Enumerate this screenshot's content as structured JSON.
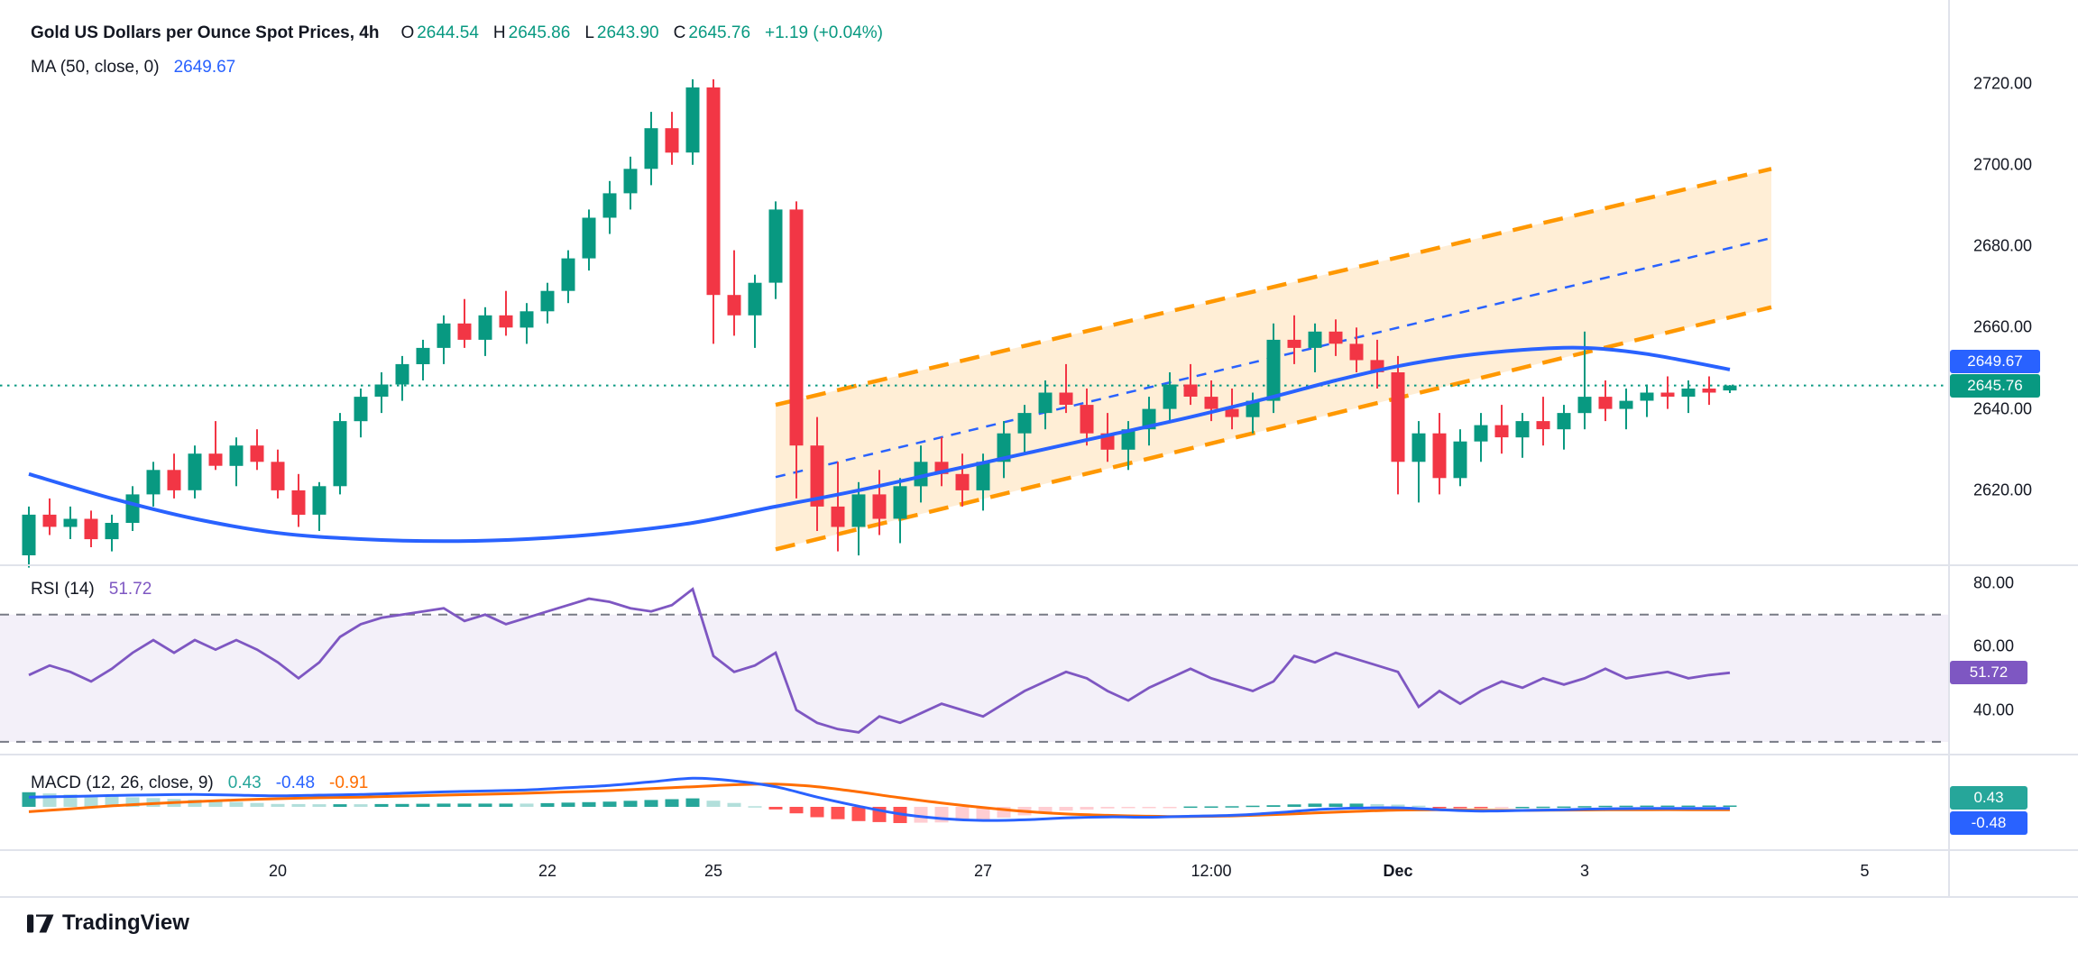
{
  "app": {
    "name": "TradingView chart"
  },
  "header": {
    "title": "Gold US Dollars per Ounce Spot Prices, 4h",
    "ohlc": {
      "o_label": "O",
      "o": "2644.54",
      "h_label": "H",
      "h": "2645.86",
      "l_label": "L",
      "l": "2643.90",
      "c_label": "C",
      "c": "2645.76",
      "change": "+1.19 (+0.04%)"
    },
    "ma": {
      "label": "MA (50, close, 0)",
      "value": "2649.67"
    }
  },
  "rsi": {
    "label": "RSI (14)",
    "value": "51.72"
  },
  "macd": {
    "label": "MACD (12, 26, close, 9)",
    "hist": "0.43",
    "macd": "-0.48",
    "signal": "-0.91"
  },
  "badges": {
    "ma_value": "2649.67",
    "last_price": "2645.76",
    "rsi": "51.72",
    "macd_hist": "0.43",
    "macd_line": "-0.48"
  },
  "logo": {
    "text": "TradingView"
  },
  "colors": {
    "up": "#089981",
    "down": "#F23645",
    "ma_line": "#2962FF",
    "channel_line": "#FF9800",
    "channel_fill": "rgba(255,152,0,0.16)",
    "channel_mid": "#2962FF",
    "rsi_line": "#7E57C2",
    "rsi_band_fill": "rgba(126,87,194,0.09)",
    "level_dash": "#787B86",
    "macd_line": "#2962FF",
    "signal_line": "#FF6D00",
    "hist_up": "#26A69A",
    "hist_up_weak": "#B2DFDB",
    "hist_down": "#FF5252",
    "hist_down_weak": "#FFCDD2",
    "text": "#131722",
    "separator": "#E0E3EB"
  },
  "chart_data": [
    {
      "type": "candlestick",
      "title": "Gold US Dollars per Ounce Spot Prices, 4h",
      "interval": "4h",
      "last_ohlc": {
        "open": 2644.54,
        "high": 2645.86,
        "low": 2643.9,
        "close": 2645.76,
        "change": "+1.19 (+0.04%)"
      },
      "ylim": [
        2601.8,
        2740.5
      ],
      "y_ticks": [
        {
          "v": 2720,
          "label": "2720.00"
        },
        {
          "v": 2700,
          "label": "2700.00"
        },
        {
          "v": 2680,
          "label": "2680.00"
        },
        {
          "v": 2660,
          "label": "2660.00"
        },
        {
          "v": 2640,
          "label": "2640.00"
        },
        {
          "v": 2620,
          "label": "2620.00"
        }
      ],
      "x_labels": [
        {
          "label": "20",
          "i": 12
        },
        {
          "label": "22",
          "i": 25
        },
        {
          "label": "25",
          "i": 33
        },
        {
          "label": "27",
          "i": 46
        },
        {
          "label": "12:00",
          "i": 57
        },
        {
          "label": "Dec",
          "i": 66,
          "bold": true
        },
        {
          "label": "3",
          "i": 75
        },
        {
          "label": "5",
          "i": 88.5
        }
      ],
      "current_price": 2645.76,
      "ma50": {
        "name": "MA (50, close, 0)",
        "last": 2649.67,
        "points": [
          [
            0,
            2624
          ],
          [
            4,
            2618
          ],
          [
            8,
            2613
          ],
          [
            12,
            2609.5
          ],
          [
            16,
            2608
          ],
          [
            20,
            2607.5
          ],
          [
            24,
            2608
          ],
          [
            28,
            2609.5
          ],
          [
            32,
            2612
          ],
          [
            36,
            2616
          ],
          [
            40,
            2620
          ],
          [
            44,
            2624.5
          ],
          [
            48,
            2629
          ],
          [
            52,
            2633.5
          ],
          [
            56,
            2638
          ],
          [
            60,
            2643
          ],
          [
            63,
            2647
          ],
          [
            66,
            2650.5
          ],
          [
            69,
            2653
          ],
          [
            72,
            2654.5
          ],
          [
            75,
            2655
          ],
          [
            78,
            2653.5
          ],
          [
            82,
            2649.67
          ]
        ]
      },
      "channel": {
        "i0": 36,
        "i1": 84,
        "upper": [
          2641,
          2699
        ],
        "lower": [
          2605.5,
          2665
        ]
      },
      "candles": [
        [
          2604,
          2616,
          2601,
          2614
        ],
        [
          2614,
          2618,
          2609,
          2611
        ],
        [
          2611,
          2616,
          2608,
          2613
        ],
        [
          2613,
          2615,
          2606,
          2608
        ],
        [
          2608,
          2614,
          2605,
          2612
        ],
        [
          2612,
          2621,
          2610,
          2619
        ],
        [
          2619,
          2627,
          2616,
          2625
        ],
        [
          2625,
          2629,
          2618,
          2620
        ],
        [
          2620,
          2631,
          2618,
          2629
        ],
        [
          2629,
          2637,
          2625,
          2626
        ],
        [
          2626,
          2633,
          2621,
          2631
        ],
        [
          2631,
          2635,
          2625,
          2627
        ],
        [
          2627,
          2630,
          2618,
          2620
        ],
        [
          2620,
          2624,
          2611,
          2614
        ],
        [
          2614,
          2622,
          2610,
          2621
        ],
        [
          2621,
          2639,
          2619,
          2637
        ],
        [
          2637,
          2645,
          2633,
          2643
        ],
        [
          2643,
          2649,
          2639,
          2646
        ],
        [
          2646,
          2653,
          2642,
          2651
        ],
        [
          2651,
          2657,
          2647,
          2655
        ],
        [
          2655,
          2663,
          2651,
          2661
        ],
        [
          2661,
          2667,
          2655,
          2657
        ],
        [
          2657,
          2665,
          2653,
          2663
        ],
        [
          2663,
          2669,
          2658,
          2660
        ],
        [
          2660,
          2666,
          2656,
          2664
        ],
        [
          2664,
          2671,
          2661,
          2669
        ],
        [
          2669,
          2679,
          2666,
          2677
        ],
        [
          2677,
          2689,
          2674,
          2687
        ],
        [
          2687,
          2696,
          2683,
          2693
        ],
        [
          2693,
          2702,
          2689,
          2699
        ],
        [
          2699,
          2713,
          2695,
          2709
        ],
        [
          2709,
          2713,
          2700,
          2703
        ],
        [
          2703,
          2721,
          2700,
          2719
        ],
        [
          2719,
          2721,
          2656,
          2668
        ],
        [
          2668,
          2679,
          2658,
          2663
        ],
        [
          2663,
          2673,
          2655,
          2671
        ],
        [
          2671,
          2691,
          2667,
          2689
        ],
        [
          2689,
          2691,
          2618,
          2631
        ],
        [
          2631,
          2638,
          2610,
          2616
        ],
        [
          2616,
          2627,
          2605,
          2611
        ],
        [
          2611,
          2622,
          2604,
          2619
        ],
        [
          2619,
          2625,
          2609,
          2613
        ],
        [
          2613,
          2623,
          2607,
          2621
        ],
        [
          2621,
          2631,
          2617,
          2627
        ],
        [
          2627,
          2633,
          2621,
          2624
        ],
        [
          2624,
          2629,
          2616,
          2620
        ],
        [
          2620,
          2629,
          2615,
          2627
        ],
        [
          2627,
          2637,
          2623,
          2634
        ],
        [
          2634,
          2641,
          2629,
          2639
        ],
        [
          2639,
          2647,
          2635,
          2644
        ],
        [
          2644,
          2651,
          2639,
          2641
        ],
        [
          2641,
          2645,
          2631,
          2634
        ],
        [
          2634,
          2639,
          2627,
          2630
        ],
        [
          2630,
          2637,
          2625,
          2635
        ],
        [
          2635,
          2643,
          2631,
          2640
        ],
        [
          2640,
          2649,
          2637,
          2646
        ],
        [
          2646,
          2651,
          2641,
          2643
        ],
        [
          2643,
          2647,
          2637,
          2640
        ],
        [
          2640,
          2645,
          2635,
          2638
        ],
        [
          2638,
          2644,
          2634,
          2642
        ],
        [
          2642,
          2661,
          2639,
          2657
        ],
        [
          2657,
          2663,
          2651,
          2655
        ],
        [
          2655,
          2661,
          2649,
          2659
        ],
        [
          2659,
          2662,
          2653,
          2656
        ],
        [
          2656,
          2660,
          2649,
          2652
        ],
        [
          2652,
          2657,
          2645,
          2649
        ],
        [
          2649,
          2653,
          2619,
          2627
        ],
        [
          2627,
          2637,
          2617,
          2634
        ],
        [
          2634,
          2639,
          2619,
          2623
        ],
        [
          2623,
          2635,
          2621,
          2632
        ],
        [
          2632,
          2639,
          2627,
          2636
        ],
        [
          2636,
          2641,
          2629,
          2633
        ],
        [
          2633,
          2639,
          2628,
          2637
        ],
        [
          2637,
          2643,
          2631,
          2635
        ],
        [
          2635,
          2641,
          2630,
          2639
        ],
        [
          2639,
          2659,
          2635,
          2643
        ],
        [
          2643,
          2647,
          2637,
          2640
        ],
        [
          2640,
          2645,
          2635,
          2642
        ],
        [
          2642,
          2646,
          2638,
          2644
        ],
        [
          2644,
          2648,
          2640,
          2643
        ],
        [
          2643,
          2647,
          2639,
          2645
        ],
        [
          2645,
          2648,
          2641,
          2644
        ],
        [
          2644.54,
          2645.86,
          2643.9,
          2645.76
        ]
      ]
    },
    {
      "type": "line",
      "name": "RSI (14)",
      "last": 51.72,
      "ylim": [
        26.3,
        85.8
      ],
      "y_ticks": [
        {
          "v": 80,
          "label": "80.00"
        },
        {
          "v": 60,
          "label": "60.00"
        },
        {
          "v": 40,
          "label": "40.00"
        }
      ],
      "bands": [
        70,
        30
      ],
      "values": [
        51,
        54,
        52,
        49,
        53,
        58,
        62,
        58,
        62,
        59,
        62,
        59,
        55,
        50,
        55,
        63,
        67,
        69,
        70,
        71,
        72,
        68,
        70,
        67,
        69,
        71,
        73,
        75,
        74,
        72,
        71,
        73,
        78,
        57,
        52,
        54,
        58,
        40,
        36,
        34,
        33,
        38,
        36,
        39,
        42,
        40,
        38,
        42,
        46,
        49,
        52,
        50,
        46,
        43,
        47,
        50,
        53,
        50,
        48,
        46,
        49,
        57,
        55,
        58,
        56,
        54,
        52,
        41,
        46,
        42,
        46,
        49,
        47,
        50,
        48,
        50,
        53,
        50,
        51,
        52,
        50,
        51,
        51.72
      ]
    },
    {
      "type": "macd",
      "name": "MACD (12, 26, close, 9)",
      "last": {
        "hist": 0.43,
        "macd": -0.48,
        "signal": -0.91
      },
      "macd_points": [
        [
          0,
          3.0
        ],
        [
          2,
          3.2
        ],
        [
          4,
          3.5
        ],
        [
          6,
          3.7
        ],
        [
          8,
          3.8
        ],
        [
          10,
          3.6
        ],
        [
          12,
          3.4
        ],
        [
          14,
          3.6
        ],
        [
          16,
          3.8
        ],
        [
          18,
          4.2
        ],
        [
          20,
          4.6
        ],
        [
          22,
          4.9
        ],
        [
          24,
          5.2
        ],
        [
          26,
          5.9
        ],
        [
          28,
          6.6
        ],
        [
          30,
          7.7
        ],
        [
          32,
          8.8
        ],
        [
          34,
          8.0
        ],
        [
          36,
          6.2
        ],
        [
          38,
          3.0
        ],
        [
          40,
          0.2
        ],
        [
          42,
          -2.2
        ],
        [
          44,
          -3.6
        ],
        [
          46,
          -4.2
        ],
        [
          48,
          -4.0
        ],
        [
          50,
          -3.4
        ],
        [
          52,
          -3.1
        ],
        [
          54,
          -3.2
        ],
        [
          56,
          -2.9
        ],
        [
          58,
          -2.6
        ],
        [
          60,
          -1.9
        ],
        [
          62,
          -0.9
        ],
        [
          64,
          -0.4
        ],
        [
          66,
          -0.3
        ],
        [
          68,
          -0.9
        ],
        [
          70,
          -1.3
        ],
        [
          72,
          -1.1
        ],
        [
          74,
          -0.9
        ],
        [
          76,
          -0.6
        ],
        [
          78,
          -0.5
        ],
        [
          80,
          -0.5
        ],
        [
          82,
          -0.48
        ]
      ],
      "signal_points": [
        [
          0,
          -1.5
        ],
        [
          2,
          -0.6
        ],
        [
          4,
          0.3
        ],
        [
          6,
          1.0
        ],
        [
          8,
          1.6
        ],
        [
          10,
          2.1
        ],
        [
          12,
          2.5
        ],
        [
          14,
          2.8
        ],
        [
          16,
          3.0
        ],
        [
          18,
          3.3
        ],
        [
          20,
          3.6
        ],
        [
          22,
          3.9
        ],
        [
          24,
          4.2
        ],
        [
          26,
          4.6
        ],
        [
          28,
          5.0
        ],
        [
          30,
          5.6
        ],
        [
          32,
          6.2
        ],
        [
          34,
          6.8
        ],
        [
          36,
          7.0
        ],
        [
          38,
          6.2
        ],
        [
          40,
          4.6
        ],
        [
          42,
          2.8
        ],
        [
          44,
          1.2
        ],
        [
          46,
          -0.2
        ],
        [
          48,
          -1.4
        ],
        [
          50,
          -2.2
        ],
        [
          52,
          -2.6
        ],
        [
          54,
          -2.9
        ],
        [
          56,
          -3.0
        ],
        [
          58,
          -2.8
        ],
        [
          60,
          -2.4
        ],
        [
          62,
          -1.9
        ],
        [
          64,
          -1.4
        ],
        [
          66,
          -1.0
        ],
        [
          68,
          -0.9
        ],
        [
          70,
          -1.05
        ],
        [
          72,
          -1.1
        ],
        [
          74,
          -1.0
        ],
        [
          76,
          -0.92
        ],
        [
          78,
          -0.88
        ],
        [
          80,
          -0.89
        ],
        [
          82,
          -0.91
        ]
      ]
    }
  ]
}
